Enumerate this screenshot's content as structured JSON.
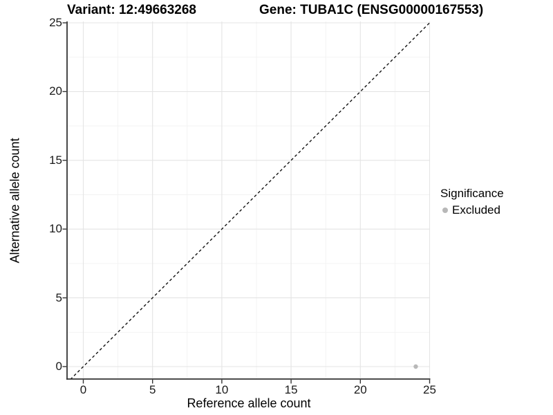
{
  "header": {
    "title_left": "Variant: 12:49663268",
    "title_right": "Gene: TUBA1C (ENSG00000167553)"
  },
  "chart_data": {
    "type": "scatter",
    "title_left": "Variant: 12:49663268",
    "title_right": "Gene: TUBA1C (ENSG00000167553)",
    "xlabel": "Reference allele count",
    "ylabel": "Alternative allele count",
    "xlim": [
      0,
      25
    ],
    "ylim": [
      0,
      25
    ],
    "xticks": [
      0,
      5,
      10,
      15,
      20,
      25
    ],
    "yticks": [
      0,
      5,
      10,
      15,
      20,
      25
    ],
    "minor_grid_step": 2.5,
    "grid": "major+minor",
    "reference_line": {
      "type": "identity-diagonal",
      "from": [
        0,
        0
      ],
      "to": [
        25,
        25
      ],
      "style": "dashed",
      "color": "#111111"
    },
    "series": [
      {
        "name": "Excluded",
        "color": "#b8b8b8",
        "points": [
          {
            "x": 24,
            "y": 0
          }
        ]
      }
    ],
    "legend": {
      "title": "Significance",
      "position": "right",
      "items": [
        {
          "label": "Excluded",
          "color": "#b8b8b8",
          "marker": "circle"
        }
      ]
    },
    "colors": {
      "grid_major": "#e4e4e4",
      "grid_minor": "#f2f2f2",
      "axis_line": "#333333",
      "tick_text": "#1a1a1a",
      "background": "#ffffff"
    }
  }
}
